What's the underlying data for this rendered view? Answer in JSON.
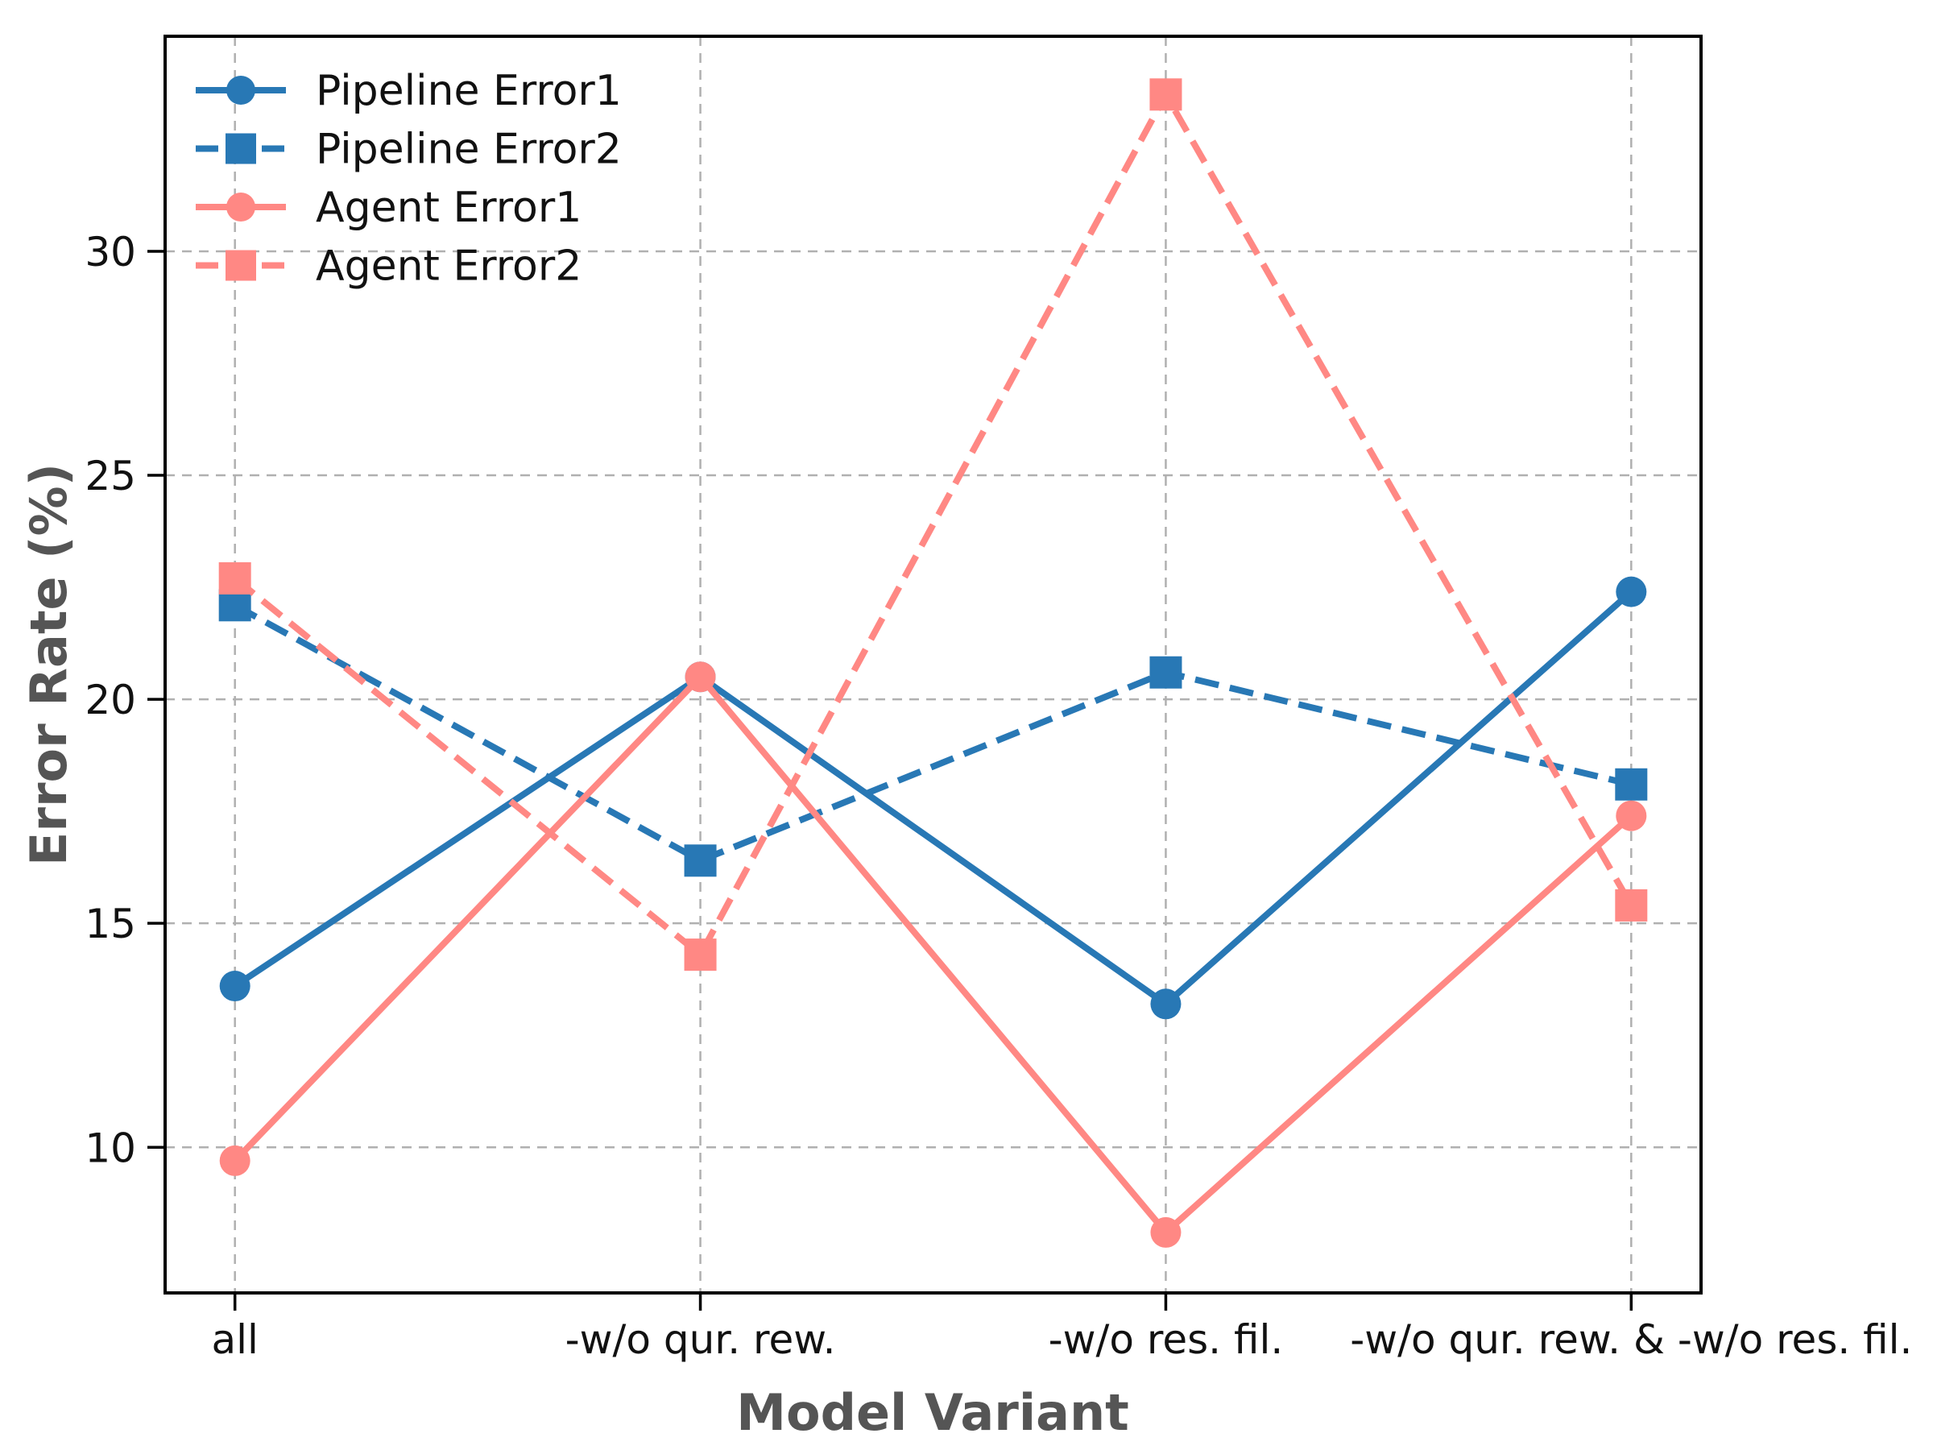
{
  "chart_data": {
    "type": "line",
    "title": "",
    "xlabel": "Model Variant",
    "ylabel": "Error Rate (%)",
    "categories": [
      "all",
      "-w/o qur. rew.",
      "-w/o res. fil.",
      "-w/o qur. rew. & -w/o res. fil."
    ],
    "yticks": [
      10,
      15,
      20,
      25,
      30
    ],
    "ylim": [
      6.75,
      34.8
    ],
    "grid": "both-dashed",
    "legend_position": "upper-left",
    "legend_frame": false,
    "series": [
      {
        "name": "Pipeline Error1",
        "color": "#2878B5",
        "linestyle": "solid",
        "marker": "circle",
        "values": [
          13.6,
          20.5,
          13.2,
          22.4
        ]
      },
      {
        "name": "Pipeline Error2",
        "color": "#2878B5",
        "linestyle": "dashed",
        "marker": "square",
        "values": [
          22.1,
          16.4,
          20.6,
          18.1
        ]
      },
      {
        "name": "Agent Error1",
        "color": "#FF8884",
        "linestyle": "solid",
        "marker": "circle",
        "values": [
          9.7,
          20.5,
          8.1,
          17.4
        ]
      },
      {
        "name": "Agent Error2",
        "color": "#FF8884",
        "linestyle": "dashed",
        "marker": "square",
        "values": [
          22.7,
          14.3,
          33.5,
          15.4
        ]
      }
    ]
  },
  "style": {
    "background": "#ffffff",
    "grid_color": "#b0b0b0",
    "spine_color": "#000000",
    "tick_label_color": "#111111",
    "axis_label_color": "#555555",
    "blue": "#2878B5",
    "salmon": "#FF8884"
  }
}
